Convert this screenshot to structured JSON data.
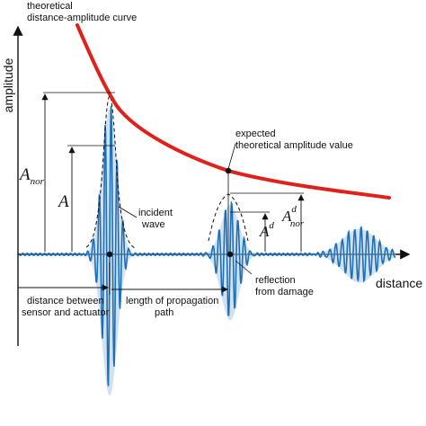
{
  "axes": {
    "y_label": "amplitude",
    "x_label": "distance"
  },
  "labels": {
    "theoretical_curve_line1": "theoretical",
    "theoretical_curve_line2": "distance-amplitude curve",
    "expected_line1": "expected",
    "expected_line2": "theoretical amplitude value",
    "incident_line1": "incident",
    "incident_line2": "wave",
    "reflection_line1": "reflection",
    "reflection_line2": "from damage",
    "distance_between_line1": "distance between",
    "distance_between_line2": "sensor and actuator",
    "propagation_line1": "length of propagation",
    "propagation_line2": "path"
  },
  "symbols": {
    "a_nor_main": "A",
    "a_nor_sub": "nor",
    "a": "A",
    "a_d_main": "A",
    "a_d_sup": "d",
    "a_d_nor_main": "A",
    "a_d_nor_sup": "d",
    "a_d_nor_sub": "nor"
  },
  "colors": {
    "curve": "#e0201a",
    "signal": "#1f6fb5",
    "envelope_fill": "#a9c9e6",
    "axis": "#111111"
  }
}
